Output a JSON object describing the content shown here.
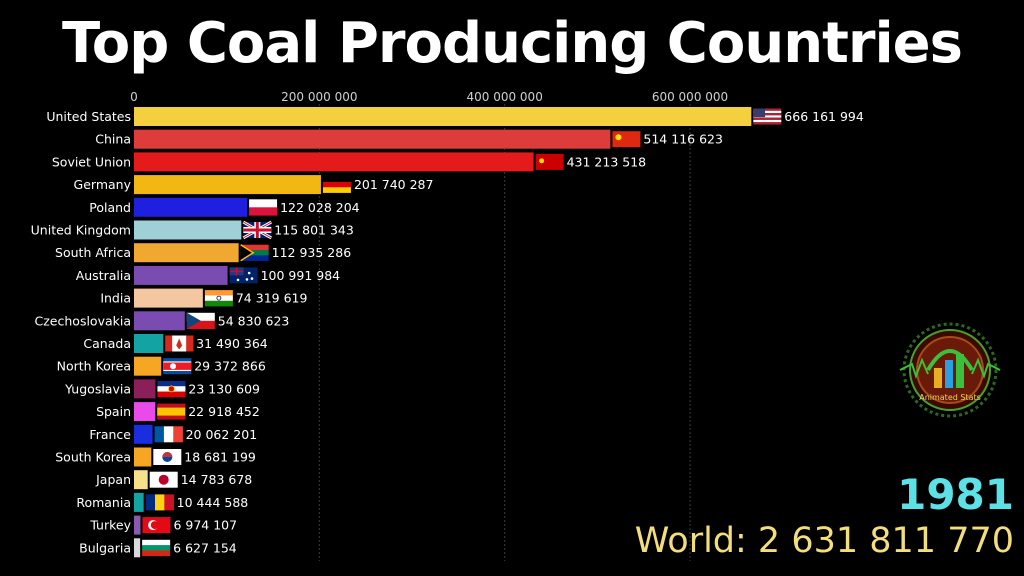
{
  "title": "Top Coal Producing Countries",
  "year": "1981",
  "world": "World: 2 631 811 770",
  "logo_text": "Animated Stats",
  "chart_data": {
    "type": "bar",
    "orientation": "horizontal",
    "title": "Top Coal Producing Countries",
    "xlim": [
      0,
      680000000
    ],
    "xticks": [
      0,
      200000000,
      400000000,
      600000000
    ],
    "xtick_labels": [
      "0",
      "200 000 000",
      "400 000 000",
      "600 000 000"
    ],
    "grid": true,
    "categories": [
      "United States",
      "China",
      "Soviet Union",
      "Germany",
      "Poland",
      "United Kingdom",
      "South Africa",
      "Australia",
      "India",
      "Czechoslovakia",
      "Canada",
      "North Korea",
      "Yugoslavia",
      "Spain",
      "France",
      "South Korea",
      "Japan",
      "Romania",
      "Turkey",
      "Bulgaria"
    ],
    "values": [
      666161994,
      514116623,
      431213518,
      201740287,
      122028204,
      115801343,
      112935286,
      100991984,
      74319619,
      54830623,
      31490364,
      29372866,
      23130609,
      22918452,
      20062201,
      18681199,
      14783678,
      10444588,
      6974107,
      6627154
    ],
    "value_labels": [
      "666 161 994",
      "514 116 623",
      "431 213 518",
      "201 740 287",
      "122 028 204",
      "115 801 343",
      "112 935 286",
      "100 991 984",
      "74 319 619",
      "54 830 623",
      "31 490 364",
      "29 372 866",
      "23 130 609",
      "22 918 452",
      "20 062 201",
      "18 681 199",
      "14 783 678",
      "10 444 588",
      "6 974 107",
      "6 627 154"
    ],
    "colors": [
      "#f4d03f",
      "#de3b3b",
      "#e51b1b",
      "#f2b713",
      "#1f1fe0",
      "#9fd0d8",
      "#f0a830",
      "#7a4bb0",
      "#f5c7a0",
      "#7a4bb0",
      "#14a3a3",
      "#f5a623",
      "#8a1f5a",
      "#e84be8",
      "#1a2ee0",
      "#f5a623",
      "#f7e08a",
      "#14a3a3",
      "#8a5ab0",
      "#d9d9d9"
    ],
    "flags": [
      "us-flag",
      "china-flag",
      "soviet-flag",
      "germany-flag",
      "poland-flag",
      "uk-flag",
      "south-africa-flag",
      "australia-flag",
      "india-flag",
      "czechoslovakia-flag",
      "canada-flag",
      "north-korea-flag",
      "yugoslavia-flag",
      "spain-flag",
      "france-flag",
      "south-korea-flag",
      "japan-flag",
      "romania-flag",
      "turkey-flag",
      "bulgaria-flag"
    ]
  }
}
